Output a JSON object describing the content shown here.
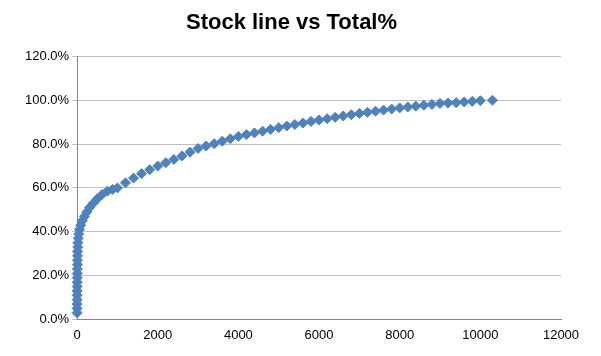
{
  "chart_data": {
    "type": "scatter",
    "title": "Stock line vs Total%",
    "x": [
      0,
      0,
      0,
      1,
      1,
      2,
      3,
      4,
      5,
      6,
      7,
      8,
      9,
      11,
      13,
      16,
      20,
      28,
      40,
      60,
      90,
      130,
      180,
      240,
      310,
      400,
      500,
      620,
      750,
      880,
      1000,
      1200,
      1400,
      1600,
      1800,
      2000,
      2200,
      2400,
      2600,
      2800,
      3000,
      3200,
      3400,
      3600,
      3800,
      4000,
      4200,
      4400,
      4600,
      4800,
      5000,
      5200,
      5400,
      5600,
      5800,
      6000,
      6200,
      6400,
      6600,
      6800,
      7000,
      7200,
      7400,
      7600,
      7800,
      8000,
      8200,
      8400,
      8600,
      8800,
      9000,
      9200,
      9400,
      9600,
      9800,
      10000,
      10300
    ],
    "values": [
      3,
      5,
      7,
      9,
      11,
      13,
      15,
      17,
      19,
      21,
      23,
      25,
      27,
      29,
      31,
      33,
      35,
      37,
      39,
      41,
      43,
      45,
      47,
      49,
      51,
      53,
      55,
      57,
      58.5,
      59.3,
      60,
      62.3,
      64.5,
      66.5,
      68.3,
      70,
      71.5,
      73,
      74.6,
      76.3,
      78,
      79.1,
      80.2,
      81.3,
      82.4,
      83.5,
      84.3,
      85.1,
      85.9,
      86.7,
      87.5,
      88.2,
      88.9,
      89.6,
      90.3,
      91,
      91.6,
      92.2,
      92.8,
      93.4,
      94,
      94.5,
      95,
      95.5,
      96,
      96.5,
      96.9,
      97.3,
      97.7,
      98.1,
      98.5,
      98.7,
      98.9,
      99.2,
      99.5,
      99.8,
      100
    ],
    "color": "#4f81bd",
    "marker": "diamond",
    "xlim": [
      0,
      12000
    ],
    "xticks": [
      0,
      2000,
      4000,
      6000,
      8000,
      10000,
      12000
    ],
    "ylim": [
      0,
      120
    ],
    "yticks": [
      {
        "value": 0,
        "label": "0.0%"
      },
      {
        "value": 20,
        "label": "20.0%"
      },
      {
        "value": 40,
        "label": "40.0%"
      },
      {
        "value": 60,
        "label": "60.0%"
      },
      {
        "value": 80,
        "label": "80.0%"
      },
      {
        "value": 100,
        "label": "100.0%"
      },
      {
        "value": 120,
        "label": "120.0%"
      }
    ],
    "grid": "y"
  }
}
